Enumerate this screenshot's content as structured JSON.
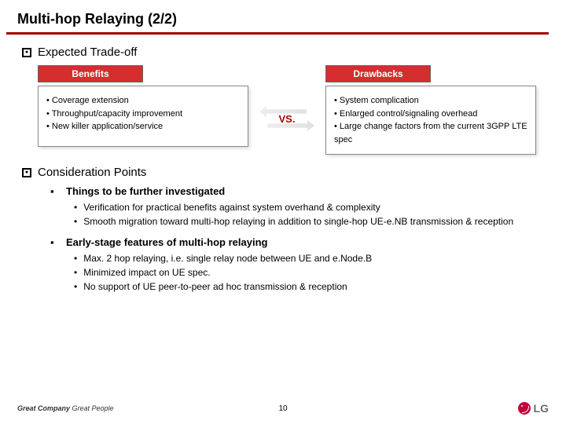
{
  "colors": {
    "accent": "#a00000",
    "header_bg": "#d42e2e",
    "vs_text": "#b00000",
    "lg_brand": "#c3003a"
  },
  "title": "Multi-hop Relaying (2/2)",
  "section1": {
    "title": "Expected Trade-off",
    "benefits": {
      "header": "Benefits",
      "items": [
        "• Coverage extension",
        "• Throughput/capacity improvement",
        "• New killer application/service"
      ]
    },
    "vs": "VS.",
    "drawbacks": {
      "header": "Drawbacks",
      "items": [
        "• System complication",
        "• Enlarged control/signaling overhead",
        "• Large change factors from the current 3GPP LTE spec"
      ]
    }
  },
  "section2": {
    "title": "Consideration Points",
    "sub1": {
      "label": "Things to be further investigated",
      "items": [
        "Verification for practical benefits against system overhand & complexity",
        "Smooth migration toward multi-hop relaying in addition to single-hop UE-e.NB transmission & reception"
      ]
    },
    "sub2": {
      "label": "Early-stage features of multi-hop relaying",
      "items": [
        "Max. 2 hop relaying, i.e. single relay node between UE and e.Node.B",
        "Minimized impact on UE spec.",
        "No support of UE peer-to-peer ad hoc transmission & reception"
      ]
    }
  },
  "footer": {
    "left_bold": "Great Company",
    "left_rest": " Great People",
    "page": "10",
    "logo_text": "LG"
  }
}
